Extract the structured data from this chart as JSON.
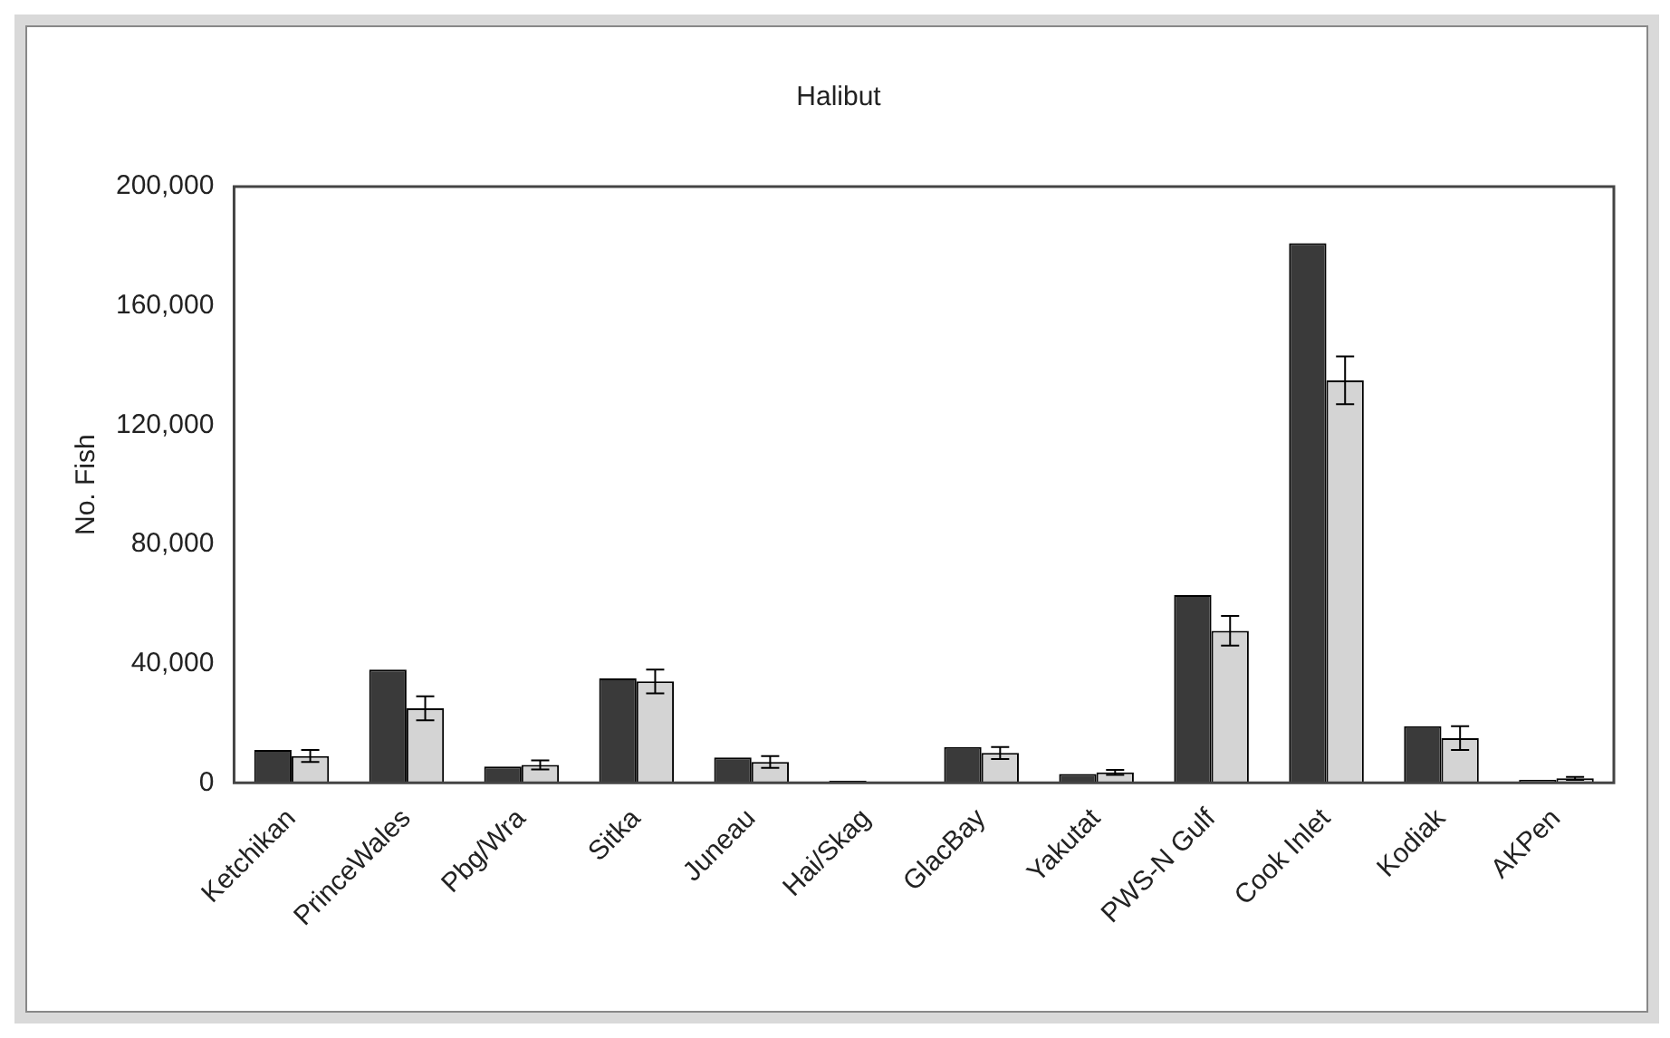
{
  "chart_data": {
    "type": "bar",
    "title": "Halibut",
    "ylabel": "No. Fish",
    "categories": [
      "Ketchikan",
      "PrinceWales",
      "Pbg/Wra",
      "Sitka",
      "Juneau",
      "Hai/Skag",
      "GlacBay",
      "Yakutat",
      "PWS-N Gulf",
      "Cook Inlet",
      "Kodiak",
      "AKPen"
    ],
    "series": [
      {
        "color": "#3a3a3a",
        "values": [
          11000,
          38000,
          5500,
          35000,
          8500,
          700,
          12000,
          3000,
          63000,
          181000,
          19000,
          1000
        ]
      },
      {
        "color": "#d4d4d4",
        "values": [
          9000,
          25000,
          6000,
          34000,
          7000,
          300,
          10000,
          3500,
          51000,
          135000,
          15000,
          1500
        ],
        "errors": [
          2000,
          4000,
          1500,
          4000,
          2000,
          null,
          2000,
          800,
          5000,
          8000,
          4000,
          500
        ]
      }
    ],
    "ylim": [
      0,
      200000
    ],
    "yticks": [
      {
        "value": 0,
        "label": "0"
      },
      {
        "value": 40000,
        "label": "40,000"
      },
      {
        "value": 80000,
        "label": "80,000"
      },
      {
        "value": 120000,
        "label": "120,000"
      },
      {
        "value": 160000,
        "label": "160,000"
      },
      {
        "value": 200000,
        "label": "200,000"
      }
    ],
    "grid": false,
    "legend": false
  }
}
